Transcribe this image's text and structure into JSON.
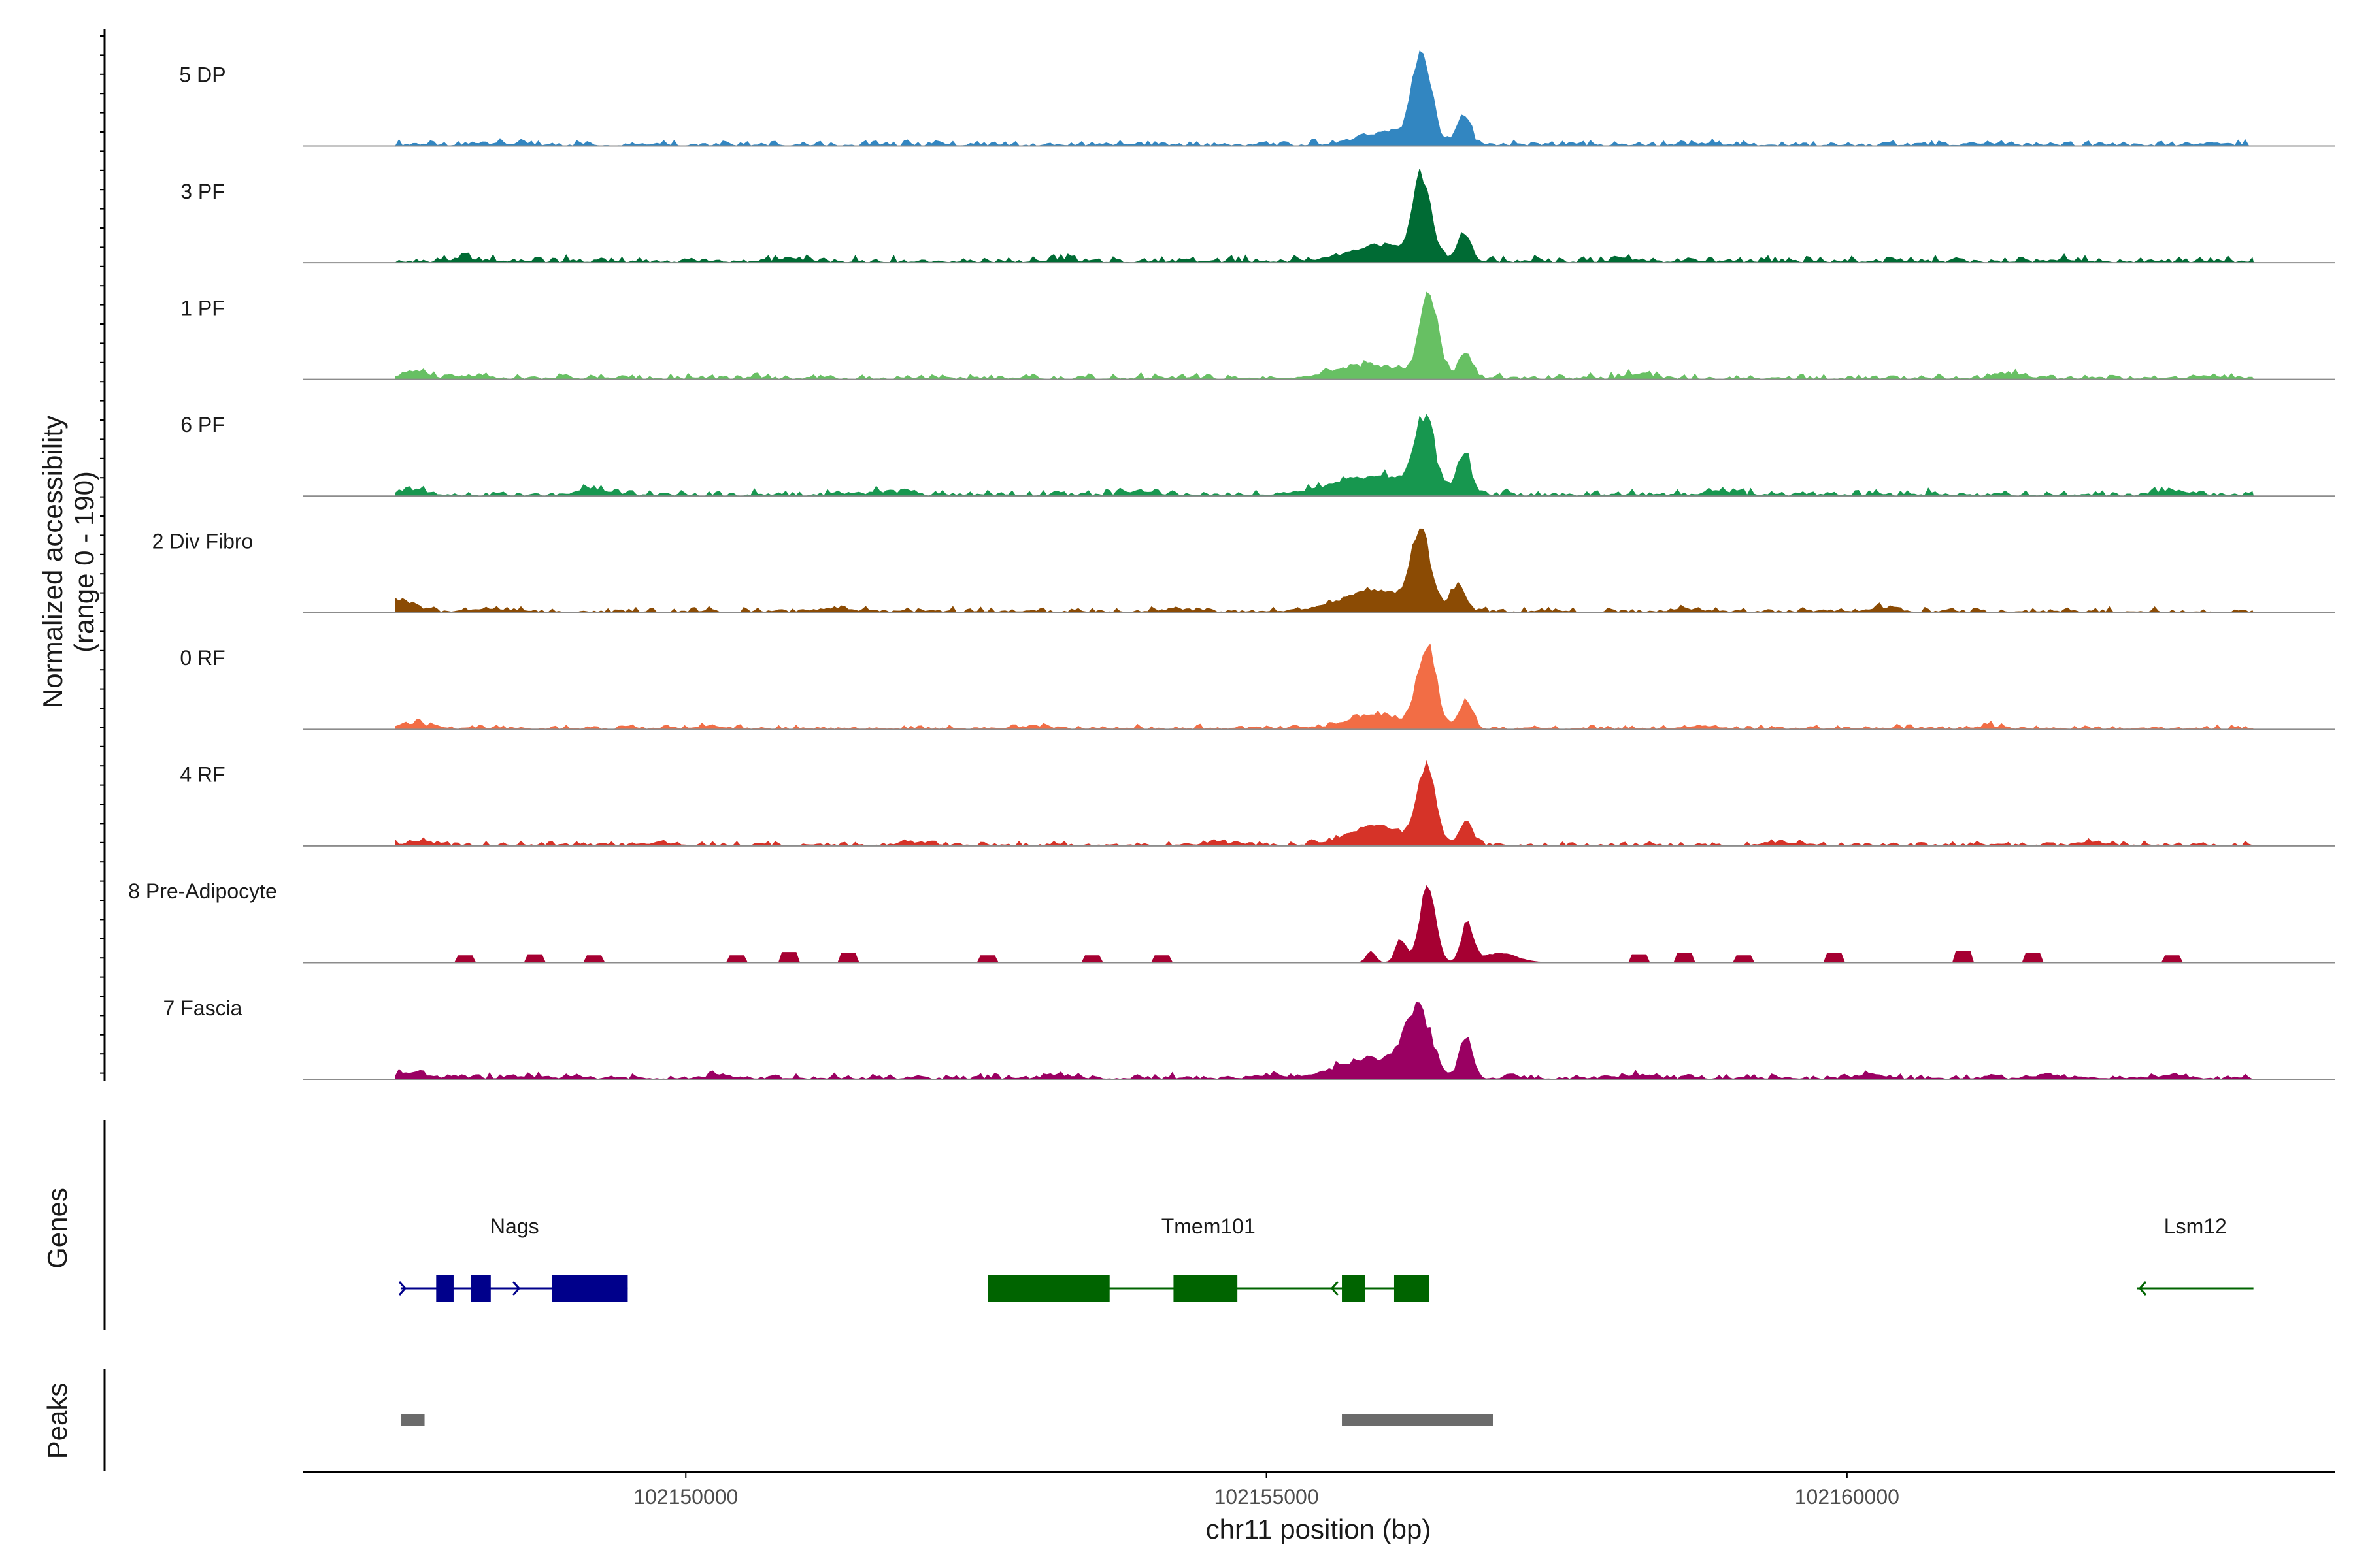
{
  "chart_data": {
    "type": "area",
    "title": "",
    "ylabel": "Normalized accessibility",
    "ylabel_range": "(range 0 - 190)",
    "ylim": [
      0,
      190
    ],
    "xlabel": "chr11 position (bp)",
    "xlim": [
      102146700,
      102164200
    ],
    "xticks": [
      "102150000",
      "102155000",
      "102160000"
    ],
    "xtick_values": [
      102150000,
      102155000,
      102160000
    ],
    "region": {
      "start": 102147500,
      "end": 102163500
    },
    "tracks": [
      {
        "name": "5 DP",
        "color": "#3286c1",
        "peaks": [
          [
            102156340,
            165,
            80
          ],
          [
            102156700,
            55,
            55
          ],
          [
            102156050,
            25,
            250
          ]
        ],
        "baseline": 6,
        "bumps": [
          [
            102148300,
            4
          ],
          [
            102149700,
            3
          ],
          [
            102158800,
            4
          ],
          [
            102161200,
            3
          ],
          [
            102163100,
            3
          ]
        ]
      },
      {
        "name": "3 PF",
        "color": "#006b34",
        "peaks": [
          [
            102156340,
            150,
            75
          ],
          [
            102156700,
            50,
            55
          ],
          [
            102156000,
            30,
            300
          ]
        ],
        "baseline": 7,
        "bumps": [
          [
            102148100,
            8
          ],
          [
            102150900,
            6
          ],
          [
            102153200,
            5
          ],
          [
            102158100,
            6
          ],
          [
            102161900,
            5
          ]
        ]
      },
      {
        "name": "1 PF",
        "color": "#67c063",
        "peaks": [
          [
            102156400,
            155,
            75
          ],
          [
            102156720,
            45,
            55
          ],
          [
            102155900,
            25,
            300
          ]
        ],
        "baseline": 6,
        "bumps": [
          [
            102147650,
            16
          ],
          [
            102148200,
            8
          ],
          [
            102158200,
            10
          ],
          [
            102161400,
            12
          ],
          [
            102163100,
            6
          ]
        ]
      },
      {
        "name": "6 PF",
        "color": "#17974f",
        "peaks": [
          [
            102156360,
            140,
            85
          ],
          [
            102156700,
            80,
            60
          ],
          [
            102155900,
            35,
            350
          ]
        ],
        "baseline": 7,
        "bumps": [
          [
            102147650,
            14
          ],
          [
            102149200,
            14
          ],
          [
            102151700,
            8
          ],
          [
            102153900,
            8
          ],
          [
            102158900,
            10
          ],
          [
            102162800,
            10
          ]
        ]
      },
      {
        "name": "2 Div Fibro",
        "color": "#8b4b04",
        "peaks": [
          [
            102156330,
            140,
            80
          ],
          [
            102156650,
            45,
            65
          ],
          [
            102155950,
            40,
            300
          ]
        ],
        "baseline": 6,
        "bumps": [
          [
            102147550,
            28
          ],
          [
            102148400,
            6
          ],
          [
            102151300,
            10
          ],
          [
            102154200,
            6
          ],
          [
            102158600,
            6
          ],
          [
            102160300,
            8
          ]
        ]
      },
      {
        "name": "0 RF",
        "color": "#f26d45",
        "peaks": [
          [
            102156380,
            150,
            80
          ],
          [
            102156720,
            48,
            55
          ],
          [
            102155950,
            25,
            250
          ]
        ],
        "baseline": 5,
        "bumps": [
          [
            102147650,
            12
          ],
          [
            102150200,
            5
          ],
          [
            102153000,
            5
          ],
          [
            102158700,
            6
          ],
          [
            102161200,
            5
          ]
        ]
      },
      {
        "name": "4 RF",
        "color": "#d63328",
        "peaks": [
          [
            102156380,
            150,
            75
          ],
          [
            102156720,
            45,
            55
          ],
          [
            102155950,
            35,
            250
          ]
        ],
        "baseline": 5,
        "bumps": [
          [
            102147700,
            8
          ],
          [
            102149800,
            6
          ],
          [
            102152000,
            7
          ],
          [
            102154600,
            6
          ],
          [
            102159400,
            6
          ],
          [
            102162100,
            7
          ]
        ]
      },
      {
        "name": "8 Pre-Adipocyte",
        "color": "#a60032",
        "peaks": [
          [
            102156390,
            150,
            65
          ],
          [
            102156730,
            75,
            50
          ],
          [
            102156160,
            45,
            45
          ],
          [
            102155900,
            20,
            40
          ],
          [
            102157000,
            18,
            150
          ]
        ],
        "baseline": 0,
        "sparse": [
          [
            102148100,
            12
          ],
          [
            102148700,
            14
          ],
          [
            102149200,
            12
          ],
          [
            102150450,
            12
          ],
          [
            102150900,
            18
          ],
          [
            102151400,
            16
          ],
          [
            102152600,
            12
          ],
          [
            102153500,
            12
          ],
          [
            102154100,
            12
          ],
          [
            102158200,
            14
          ],
          [
            102158600,
            16
          ],
          [
            102159100,
            12
          ],
          [
            102159900,
            16
          ],
          [
            102161000,
            20
          ],
          [
            102161600,
            16
          ],
          [
            102162800,
            12
          ]
        ]
      },
      {
        "name": "7 Fascia",
        "color": "#9a0062",
        "peaks": [
          [
            102156300,
            120,
            110
          ],
          [
            102156720,
            75,
            55
          ],
          [
            102155900,
            35,
            300
          ]
        ],
        "baseline": 6,
        "bumps": [
          [
            102147650,
            14
          ],
          [
            102148600,
            6
          ],
          [
            102150300,
            6
          ],
          [
            102153200,
            8
          ],
          [
            102155000,
            6
          ],
          [
            102158200,
            8
          ],
          [
            102160200,
            8
          ],
          [
            102161700,
            8
          ],
          [
            102162800,
            8
          ]
        ]
      }
    ],
    "genes_track_label": "Genes",
    "peaks_track_label": "Peaks",
    "genes": [
      {
        "name": "Nags",
        "strand": "+",
        "color": "#00008b",
        "start": 102147550,
        "end": 102149500,
        "exons": [
          [
            102147850,
            102148000
          ],
          [
            102148150,
            102148320
          ],
          [
            102148850,
            102149500
          ]
        ]
      },
      {
        "name": "Tmem101",
        "strand": "-",
        "color": "#006400",
        "start": 102152600,
        "end": 102156400,
        "exons": [
          [
            102152600,
            102153650
          ],
          [
            102154200,
            102154750
          ],
          [
            102155650,
            102155850
          ],
          [
            102156100,
            102156400
          ]
        ]
      },
      {
        "name": "Lsm12",
        "strand": "-",
        "color": "#006400",
        "start": 102162500,
        "end": 102163500,
        "exons": []
      }
    ],
    "peak_regions": [
      [
        102147550,
        102147750
      ],
      [
        102155650,
        102156950
      ]
    ],
    "peak_color": "#6b6b6b"
  }
}
